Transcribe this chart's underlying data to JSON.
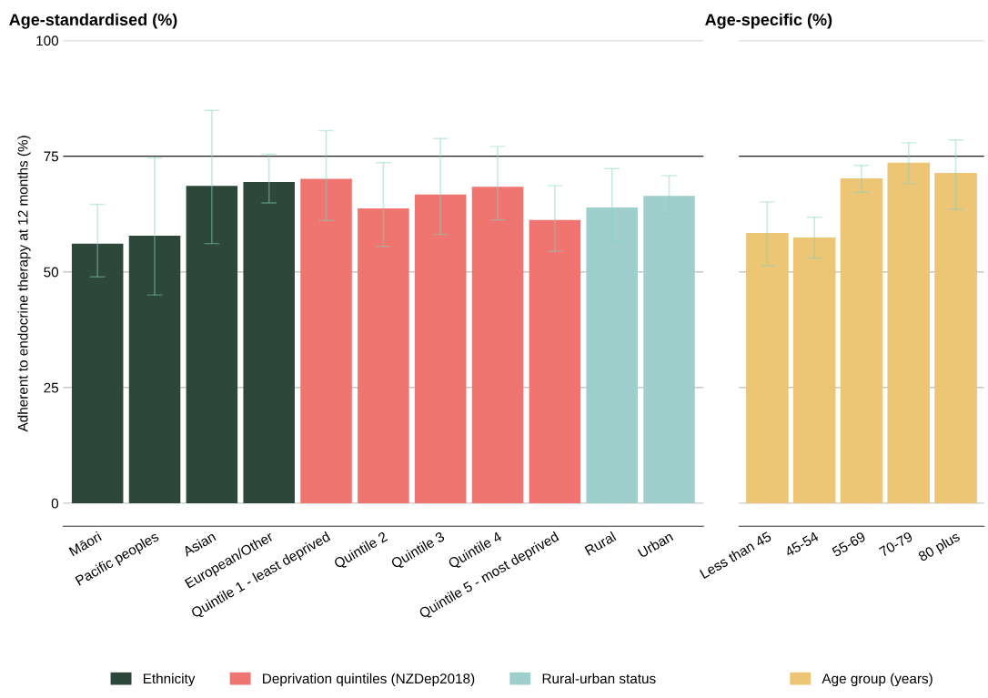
{
  "chart_data": [
    {
      "type": "bar",
      "title": "Age-standardised (%)",
      "ylabel": "Adherent to endocrine therapy at 12 months (%)",
      "categories": [
        "Māori",
        "Pacific peoples",
        "Asian",
        "European/Other",
        "Quintile 1 - least deprived",
        "Quintile 2",
        "Quintile 3",
        "Quintile 4",
        "Quintile 5 - most deprived",
        "Rural",
        "Urban"
      ],
      "series": [
        {
          "name": "Ethnicity",
          "color": "#2e473b",
          "values": [
            56.1,
            57.8,
            68.6,
            69.4,
            null,
            null,
            null,
            null,
            null,
            null,
            null
          ],
          "errors": [
            [
              48.9,
              64.6
            ],
            [
              45.0,
              74.6
            ],
            [
              56.1,
              84.9
            ],
            [
              64.9,
              75.4
            ],
            null,
            null,
            null,
            null,
            null,
            null,
            null
          ]
        },
        {
          "name": "Deprivation quintiles (NZDep2018)",
          "color": "#f07470",
          "values": [
            null,
            null,
            null,
            null,
            70.1,
            63.7,
            66.7,
            68.4,
            61.2,
            null,
            null
          ],
          "errors": [
            null,
            null,
            null,
            null,
            [
              61.1,
              80.5
            ],
            [
              55.5,
              73.6
            ],
            [
              58.1,
              78.8
            ],
            [
              61.2,
              77.1
            ],
            [
              54.4,
              68.6
            ],
            null,
            null
          ]
        },
        {
          "name": "Rural-urban status",
          "color": "#9fcfcd",
          "values": [
            null,
            null,
            null,
            null,
            null,
            null,
            null,
            null,
            null,
            63.9,
            66.4
          ],
          "errors": [
            null,
            null,
            null,
            null,
            null,
            null,
            null,
            null,
            null,
            [
              56.4,
              72.3
            ],
            [
              62.5,
              70.8
            ]
          ]
        }
      ],
      "ylim": [
        -5,
        100
      ],
      "yticks": [
        0,
        25,
        50,
        75,
        100
      ],
      "grid": "y",
      "legend": "bottom",
      "ref_lines": [
        {
          "axis": "y",
          "value": 75,
          "color": "#222222"
        }
      ]
    },
    {
      "type": "bar",
      "title": "Age-specific (%)",
      "categories": [
        "Less than 45",
        "45-54",
        "55-69",
        "70-79",
        "80 plus"
      ],
      "series": [
        {
          "name": "Age group (years)",
          "color": "#ecc575",
          "values": [
            58.4,
            57.4,
            70.2,
            73.6,
            71.4
          ],
          "errors": [
            [
              51.3,
              65.1
            ],
            [
              53.0,
              61.8
            ],
            [
              67.2,
              73.0
            ],
            [
              69.1,
              77.9
            ],
            [
              63.5,
              78.5
            ]
          ]
        }
      ],
      "ylim": [
        -5,
        100
      ],
      "yticks": [
        0,
        25,
        50,
        75,
        100
      ],
      "grid": "y",
      "legend": "bottom",
      "tick_labels": "x",
      "ref_lines": [
        {
          "axis": "y",
          "value": 75,
          "color": "#222222"
        }
      ]
    }
  ]
}
